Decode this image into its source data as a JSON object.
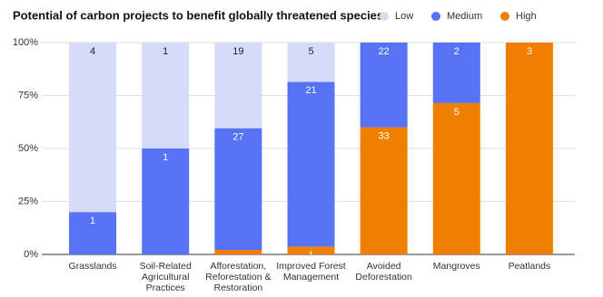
{
  "chart_data": {
    "type": "bar",
    "stacked": "percent",
    "title": "Potential of carbon projects to benefit globally threatened species",
    "categories": [
      "Grasslands",
      "Soil-Related Agricultural Practices",
      "Afforestation, Reforestation & Restoration",
      "Improved Forest Management",
      "Avoided Deforestation",
      "Mangroves",
      "Peatlands"
    ],
    "series": [
      {
        "name": "High",
        "color": "#f07f00",
        "values": [
          0,
          0,
          1,
          1,
          33,
          5,
          3
        ]
      },
      {
        "name": "Medium",
        "color": "#5673f5",
        "values": [
          1,
          1,
          27,
          21,
          22,
          2,
          0
        ]
      },
      {
        "name": "Low",
        "color": "#d6dcf8",
        "values": [
          4,
          1,
          19,
          5,
          0,
          0,
          0
        ]
      }
    ],
    "ylim": [
      0,
      100
    ],
    "yticks": [
      {
        "value": 0,
        "label": "0%"
      },
      {
        "value": 25,
        "label": "25%"
      },
      {
        "value": 50,
        "label": "50%"
      },
      {
        "value": 75,
        "label": "75%"
      },
      {
        "value": 100,
        "label": "100%"
      }
    ],
    "grid": true,
    "legend": "top-right"
  }
}
